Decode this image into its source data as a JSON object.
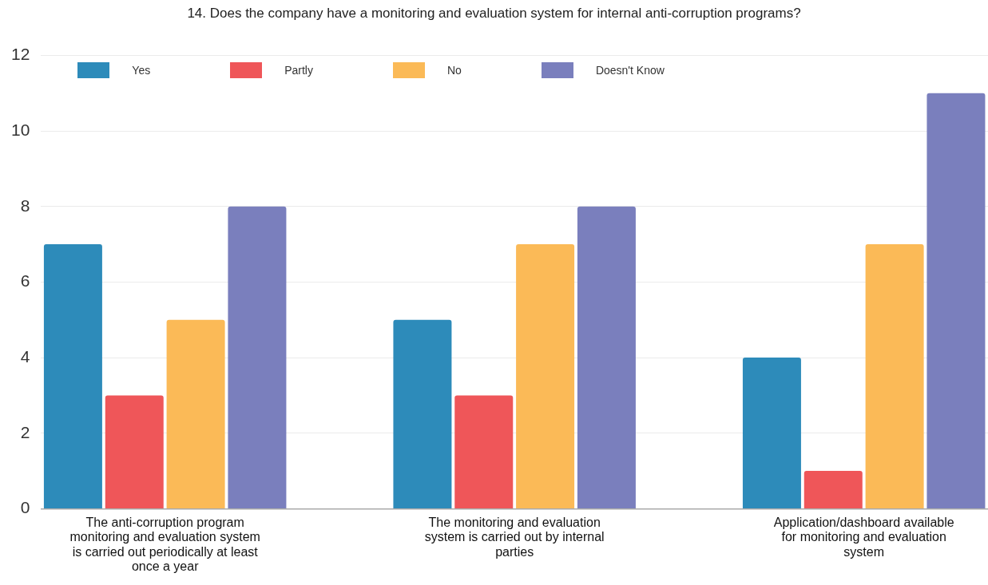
{
  "chart_data": {
    "type": "bar",
    "title": "14. Does the company have a monitoring and evaluation system for internal anti-corruption programs?",
    "categories": [
      "The anti-corruption program monitoring and evaluation system is carried out periodically at least once a year",
      "The monitoring and evaluation system is carried out by internal parties",
      "Application/dashboard available for monitoring and evaluation system"
    ],
    "series": [
      {
        "name": "Yes",
        "color": "#2d8bba",
        "values": [
          7,
          5,
          4
        ]
      },
      {
        "name": "Partly",
        "color": "#ef5659",
        "values": [
          3,
          3,
          1
        ]
      },
      {
        "name": "No",
        "color": "#fbba57",
        "values": [
          5,
          7,
          7
        ]
      },
      {
        "name": "Doesn't Know",
        "color": "#7a7fbd",
        "values": [
          8,
          8,
          11
        ]
      }
    ],
    "ylim": [
      0,
      12
    ],
    "yticks": [
      0,
      2,
      4,
      6,
      8,
      10,
      12
    ],
    "grid": "y",
    "legend": "top left"
  }
}
